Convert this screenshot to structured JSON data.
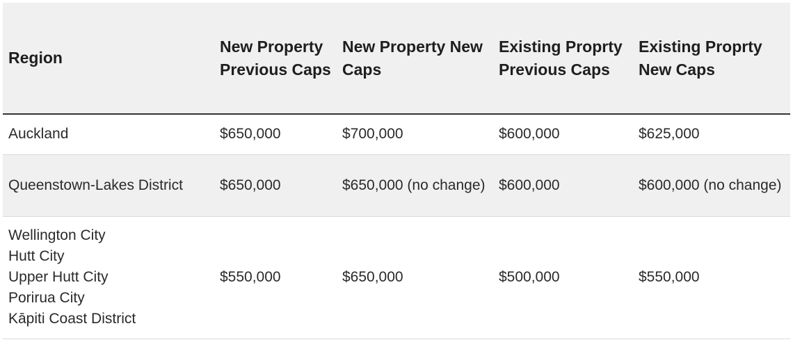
{
  "table": {
    "headers": [
      "Region",
      "New Property Previous Caps",
      "New Property New Caps",
      "Existing Proprty Previous Caps",
      "Existing Proprty New Caps"
    ],
    "rows": [
      {
        "region": [
          "Auckland"
        ],
        "cells": [
          "$650,000",
          "$700,000",
          "$600,000",
          "$625,000"
        ]
      },
      {
        "region": [
          "Queenstown-Lakes District"
        ],
        "cells": [
          "$650,000",
          "$650,000 (no change)",
          "$600,000",
          "$600,000 (no change)"
        ]
      },
      {
        "region": [
          "Wellington City",
          "Hutt City",
          "Upper Hutt City",
          "Porirua City",
          "Kāpiti Coast District"
        ],
        "cells": [
          "$550,000",
          "$650,000",
          "$500,000",
          "$550,000"
        ]
      }
    ]
  }
}
